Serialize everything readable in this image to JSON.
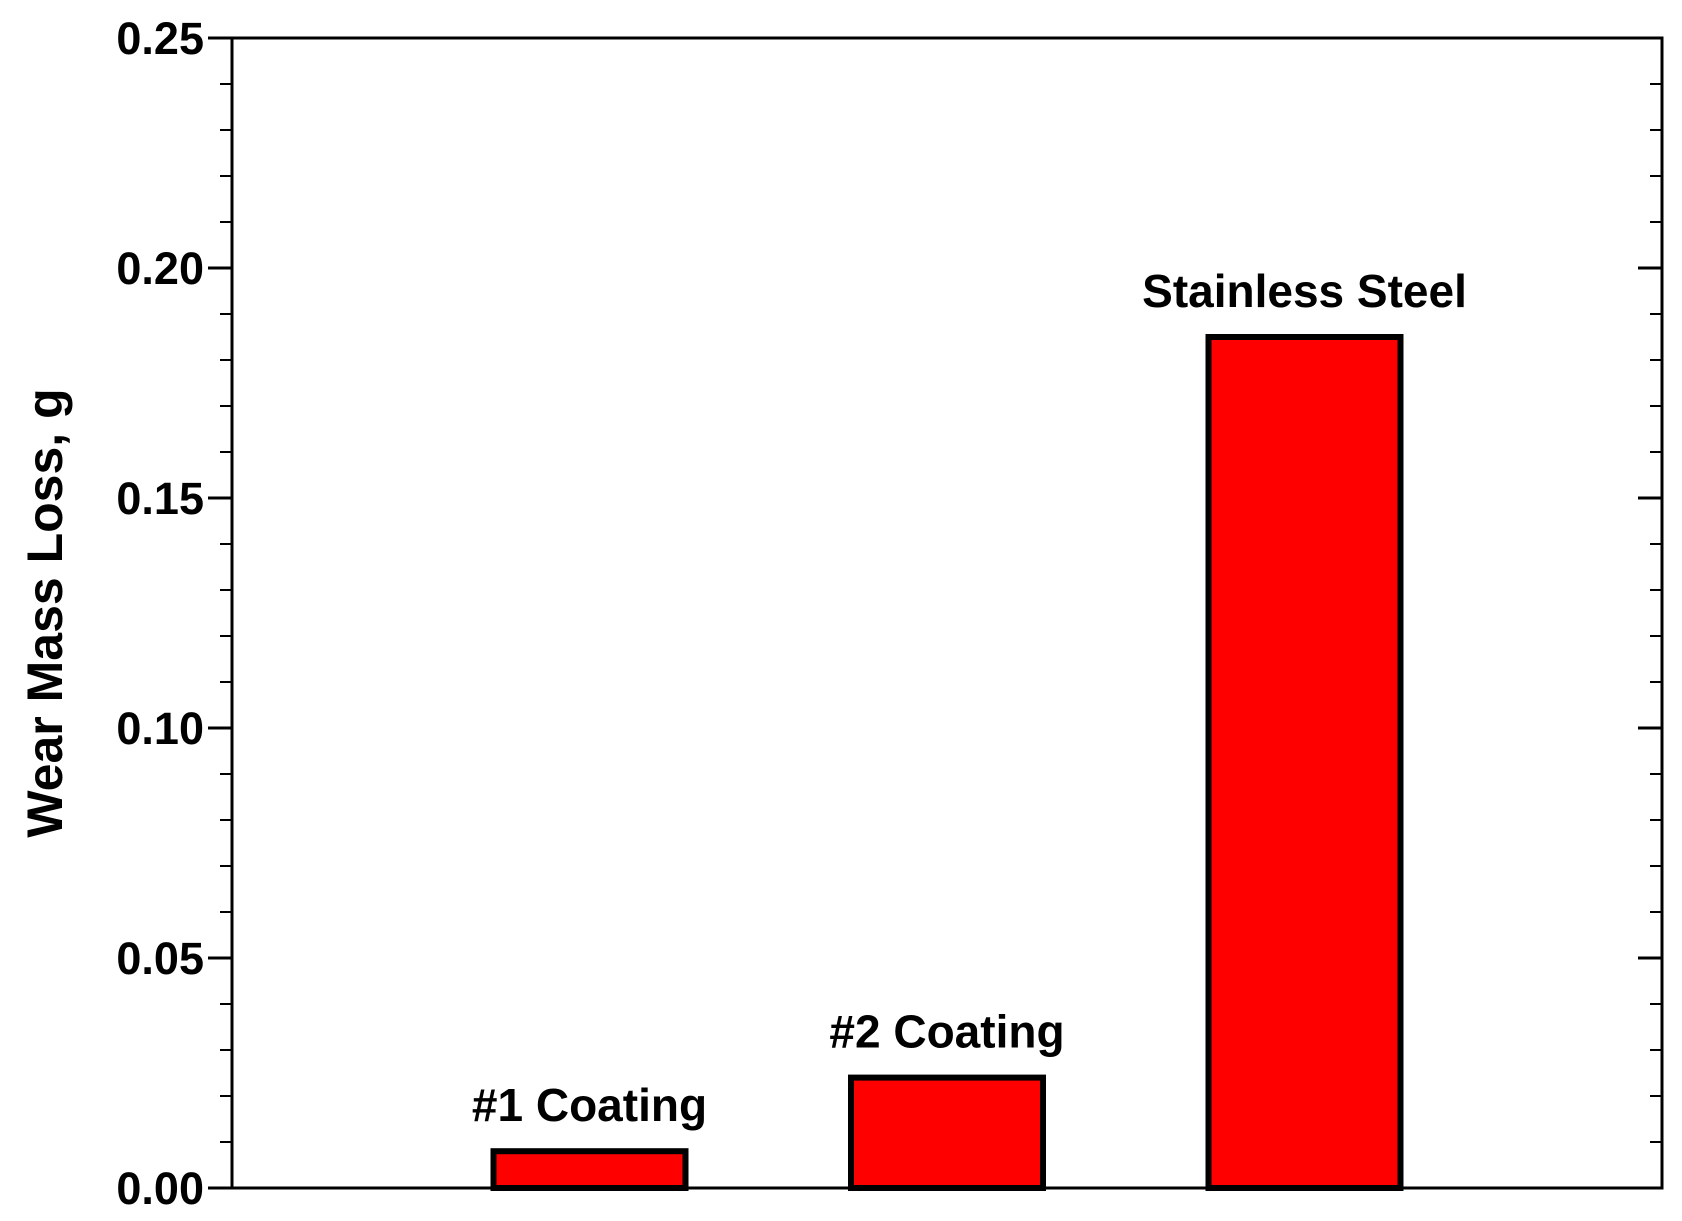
{
  "chart_data": {
    "type": "bar",
    "categories": [
      "#1 Coating",
      "#2 Coating",
      "Stainless Steel"
    ],
    "values": [
      0.008,
      0.024,
      0.185
    ],
    "title": "",
    "xlabel": "",
    "ylabel": "Wear Mass Loss, g",
    "ylim": [
      0,
      0.25
    ],
    "yticks": [
      "0.00",
      "0.05",
      "0.10",
      "0.15",
      "0.20",
      "0.25"
    ],
    "grid": false,
    "legend": "none",
    "bar_color": "#ff0000",
    "bar_edge_color": "#000000",
    "data_labels": [
      "#1 Coating",
      "#2 Coating",
      "Stainless Steel"
    ]
  }
}
